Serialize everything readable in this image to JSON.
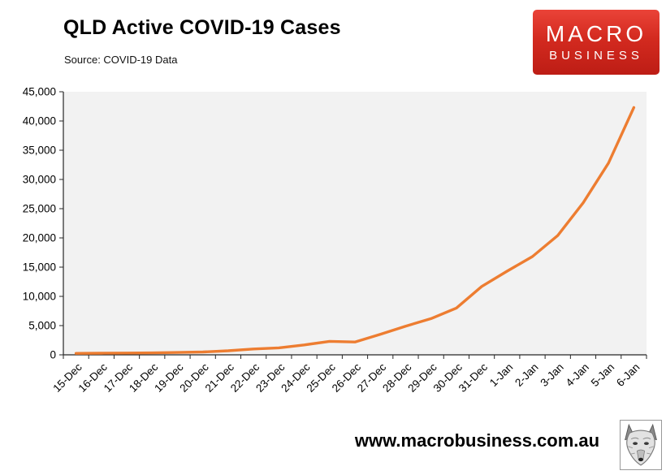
{
  "header": {
    "title": "QLD Active COVID-19 Cases",
    "source": "Source: COVID-19 Data"
  },
  "logo": {
    "line1": "MACRO",
    "line2": "BUSINESS",
    "bg_color": "#d32a1f",
    "text_color": "#ffffff"
  },
  "footer": {
    "url": "www.macrobusiness.com.au"
  },
  "chart_data": {
    "type": "line",
    "title": "QLD Active COVID-19 Cases",
    "subtitle": "Source: COVID-19 Data",
    "categories": [
      "15-Dec",
      "16-Dec",
      "17-Dec",
      "18-Dec",
      "19-Dec",
      "20-Dec",
      "21-Dec",
      "22-Dec",
      "23-Dec",
      "24-Dec",
      "25-Dec",
      "26-Dec",
      "27-Dec",
      "28-Dec",
      "29-Dec",
      "30-Dec",
      "31-Dec",
      "1-Jan",
      "2-Jan",
      "3-Jan",
      "4-Jan",
      "5-Jan",
      "6-Jan"
    ],
    "values": [
      250,
      280,
      300,
      330,
      400,
      480,
      700,
      1000,
      1200,
      1700,
      2300,
      2200,
      3500,
      4900,
      6200,
      8000,
      11700,
      14300,
      16800,
      20400,
      26000,
      32800,
      42300
    ],
    "series_name": "QLD active COVID-19 cases",
    "xlabel": "",
    "ylabel": "",
    "ylim": [
      0,
      45000
    ],
    "ytick_step": 5000,
    "ytick_labels": [
      "0",
      "5,000",
      "10,000",
      "15,000",
      "20,000",
      "25,000",
      "30,000",
      "35,000",
      "40,000",
      "45,000"
    ],
    "grid": false,
    "legend": "none",
    "line_color": "#ED7D31",
    "plot_bg": "#F2F2F2",
    "axis_color": "#262626",
    "x_labels_rotation_deg": -45
  }
}
